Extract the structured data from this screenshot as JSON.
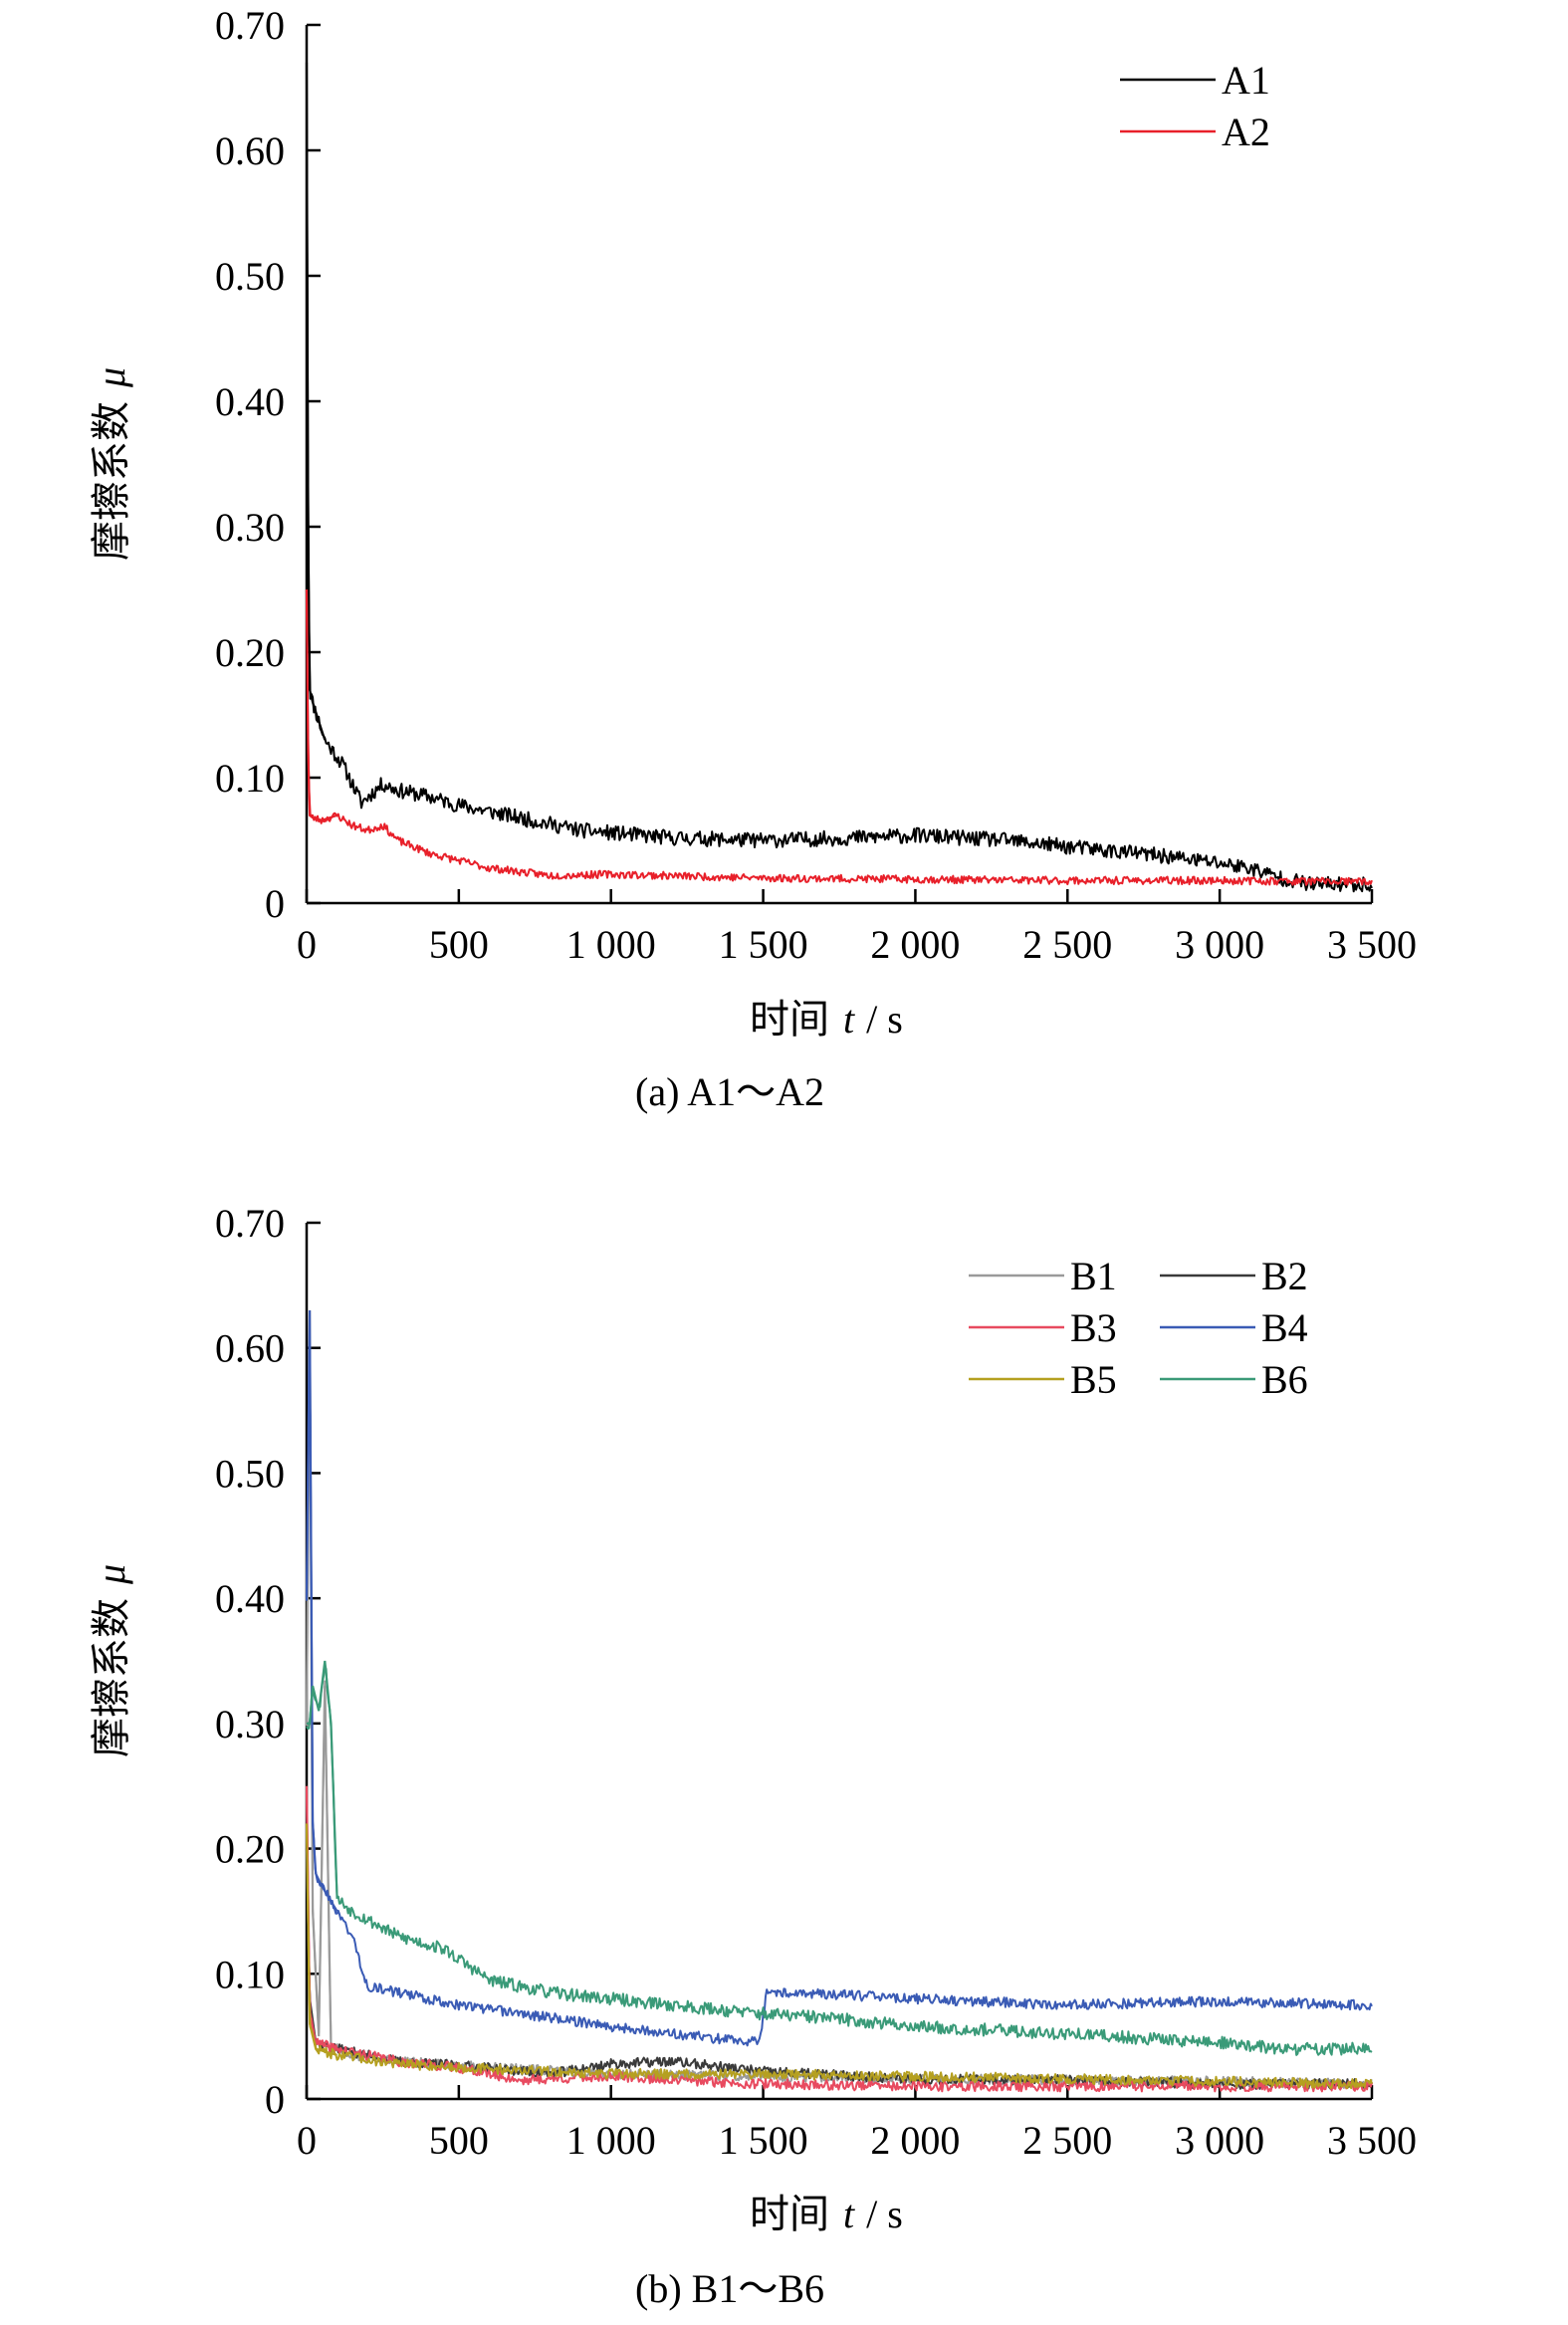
{
  "chart_data": [
    {
      "id": "a",
      "type": "line",
      "caption": "(a) A1～A2",
      "xlabel_text": "时间",
      "xlabel_symbol": "t",
      "xlabel_unit": "/ s",
      "ylabel_text": "摩擦系数",
      "ylabel_symbol": "μ",
      "xlim": [
        0,
        3500
      ],
      "ylim": [
        0,
        0.7
      ],
      "x_ticks": [
        0,
        500,
        1000,
        1500,
        2000,
        2500,
        3000,
        3500
      ],
      "x_tick_labels": [
        "0",
        "500",
        "1 000",
        "1 500",
        "2 000",
        "2 500",
        "3 000",
        "3 500"
      ],
      "y_ticks": [
        0,
        0.1,
        0.2,
        0.3,
        0.4,
        0.5,
        0.6,
        0.7
      ],
      "y_tick_labels": [
        "0",
        "0.10",
        "0.20",
        "0.30",
        "0.40",
        "0.50",
        "0.60",
        "0.70"
      ],
      "legend_position": "top-right",
      "legend_columns": 1,
      "series": [
        {
          "name": "A1",
          "color": "#000000",
          "noise": 0.006,
          "seed": 11,
          "x": [
            0,
            5,
            10,
            20,
            60,
            120,
            180,
            250,
            300,
            400,
            500,
            700,
            900,
            1200,
            1500,
            1800,
            2000,
            2300,
            2500,
            2800,
            3000,
            3100,
            3200,
            3300,
            3500
          ],
          "y": [
            0.67,
            0.3,
            0.17,
            0.16,
            0.13,
            0.11,
            0.08,
            0.095,
            0.09,
            0.085,
            0.078,
            0.068,
            0.058,
            0.052,
            0.05,
            0.052,
            0.054,
            0.05,
            0.045,
            0.038,
            0.032,
            0.028,
            0.02,
            0.015,
            0.015
          ]
        },
        {
          "name": "A2",
          "color": "#e8202a",
          "noise": 0.003,
          "seed": 23,
          "x": [
            0,
            5,
            10,
            20,
            50,
            100,
            150,
            200,
            250,
            300,
            400,
            600,
            800,
            1000,
            1500,
            2000,
            2500,
            3000,
            3500
          ],
          "y": [
            0.25,
            0.12,
            0.07,
            0.068,
            0.066,
            0.07,
            0.062,
            0.058,
            0.062,
            0.05,
            0.04,
            0.028,
            0.022,
            0.023,
            0.02,
            0.019,
            0.018,
            0.018,
            0.017
          ]
        }
      ]
    },
    {
      "id": "b",
      "type": "line",
      "caption": "(b) B1～B6",
      "xlabel_text": "时间",
      "xlabel_symbol": "t",
      "xlabel_unit": "/ s",
      "ylabel_text": "摩擦系数",
      "ylabel_symbol": "μ",
      "xlim": [
        0,
        3500
      ],
      "ylim": [
        0,
        0.7
      ],
      "x_ticks": [
        0,
        500,
        1000,
        1500,
        2000,
        2500,
        3000,
        3500
      ],
      "x_tick_labels": [
        "0",
        "500",
        "1 000",
        "1 500",
        "2 000",
        "2 500",
        "3 000",
        "3 500"
      ],
      "y_ticks": [
        0,
        0.1,
        0.2,
        0.3,
        0.4,
        0.5,
        0.6,
        0.7
      ],
      "y_tick_labels": [
        "0",
        "0.10",
        "0.20",
        "0.30",
        "0.40",
        "0.50",
        "0.60",
        "0.70"
      ],
      "legend_position": "top-right",
      "legend_columns": 2,
      "series": [
        {
          "name": "B1",
          "color": "#9a9a9a",
          "noise": 0.004,
          "seed": 31,
          "x": [
            0,
            10,
            20,
            40,
            60,
            80,
            100,
            150,
            300,
            600,
            1000,
            1500,
            2000,
            2500,
            3000,
            3500
          ],
          "y": [
            0.3,
            0.63,
            0.15,
            0.05,
            0.33,
            0.04,
            0.04,
            0.035,
            0.03,
            0.025,
            0.02,
            0.018,
            0.016,
            0.015,
            0.014,
            0.012
          ]
        },
        {
          "name": "B2",
          "color": "#3a3a3a",
          "noise": 0.004,
          "seed": 37,
          "x": [
            0,
            10,
            30,
            100,
            300,
            600,
            800,
            1000,
            1200,
            1500,
            2000,
            2500,
            3000,
            3500
          ],
          "y": [
            0.2,
            0.08,
            0.045,
            0.04,
            0.03,
            0.025,
            0.02,
            0.028,
            0.03,
            0.022,
            0.016,
            0.015,
            0.012,
            0.012
          ]
        },
        {
          "name": "B3",
          "color": "#e84a5f",
          "noise": 0.004,
          "seed": 41,
          "x": [
            0,
            10,
            30,
            100,
            300,
            500,
            700,
            1000,
            1300,
            1500,
            2000,
            2500,
            3000,
            3500
          ],
          "y": [
            0.25,
            0.07,
            0.045,
            0.04,
            0.03,
            0.025,
            0.015,
            0.018,
            0.014,
            0.012,
            0.01,
            0.01,
            0.01,
            0.01
          ]
        },
        {
          "name": "B4",
          "color": "#3a5bb5",
          "noise": 0.004,
          "seed": 43,
          "x": [
            0,
            10,
            20,
            30,
            50,
            100,
            150,
            200,
            300,
            500,
            800,
            1000,
            1200,
            1490,
            1510,
            1600,
            2000,
            2500,
            3000,
            3500
          ],
          "y": [
            0.4,
            0.63,
            0.22,
            0.18,
            0.17,
            0.15,
            0.13,
            0.09,
            0.085,
            0.075,
            0.065,
            0.058,
            0.052,
            0.045,
            0.085,
            0.085,
            0.08,
            0.075,
            0.078,
            0.075
          ]
        },
        {
          "name": "B5",
          "color": "#b5a020",
          "noise": 0.004,
          "seed": 47,
          "x": [
            0,
            10,
            30,
            100,
            300,
            600,
            1000,
            1500,
            2000,
            2500,
            3000,
            3500
          ],
          "y": [
            0.22,
            0.06,
            0.04,
            0.035,
            0.028,
            0.024,
            0.02,
            0.02,
            0.018,
            0.016,
            0.014,
            0.012
          ]
        },
        {
          "name": "B6",
          "color": "#3a9a78",
          "noise": 0.005,
          "seed": 53,
          "x": [
            0,
            10,
            20,
            40,
            60,
            80,
            100,
            150,
            300,
            450,
            600,
            800,
            1000,
            1200,
            1500,
            1700,
            2000,
            2500,
            3000,
            3200,
            3500
          ],
          "y": [
            0.3,
            0.3,
            0.33,
            0.31,
            0.35,
            0.3,
            0.16,
            0.15,
            0.13,
            0.12,
            0.095,
            0.085,
            0.08,
            0.075,
            0.068,
            0.065,
            0.058,
            0.052,
            0.045,
            0.04,
            0.04
          ]
        }
      ]
    }
  ]
}
